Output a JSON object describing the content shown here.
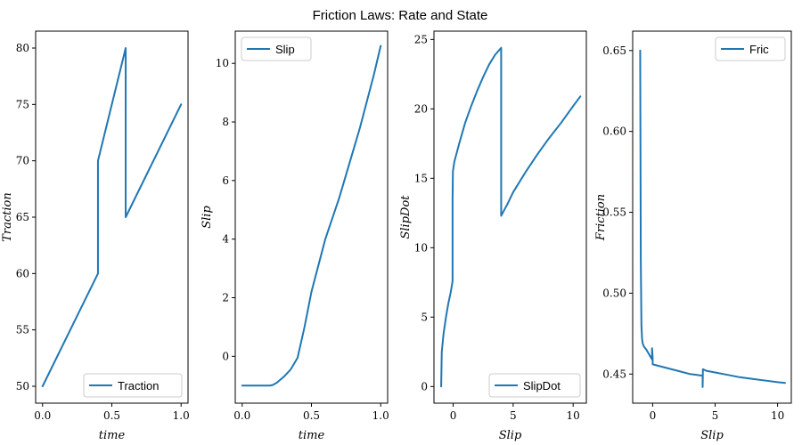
{
  "title": "Friction Laws: Rate and State",
  "colors": {
    "line": "#1f77b4",
    "axis": "#000000",
    "legend_border": "#cccccc"
  },
  "chart_data": [
    {
      "type": "line",
      "xlabel": "time",
      "ylabel": "Traction",
      "xlim": [
        -0.05,
        1.05
      ],
      "ylim": [
        48.5,
        81.5
      ],
      "xticks": [
        0.0,
        0.5,
        1.0
      ],
      "xtick_labels": [
        "0.0",
        "0.5",
        "1.0"
      ],
      "yticks": [
        50,
        55,
        60,
        65,
        70,
        75,
        80
      ],
      "ytick_labels": [
        "50",
        "55",
        "60",
        "65",
        "70",
        "75",
        "80"
      ],
      "legend": "lower right",
      "series": [
        {
          "name": "Traction",
          "x": [
            0.0,
            0.4,
            0.4,
            0.6,
            0.6,
            1.0
          ],
          "y": [
            50,
            60,
            70,
            80,
            65,
            75
          ]
        }
      ]
    },
    {
      "type": "line",
      "xlabel": "time",
      "ylabel": "Slip",
      "xlim": [
        -0.05,
        1.05
      ],
      "ylim": [
        -1.6,
        11.1
      ],
      "xticks": [
        0.0,
        0.5,
        1.0
      ],
      "xtick_labels": [
        "0.0",
        "0.5",
        "1.0"
      ],
      "yticks": [
        0,
        2,
        4,
        6,
        8,
        10
      ],
      "ytick_labels": [
        "0",
        "2",
        "4",
        "6",
        "8",
        "10"
      ],
      "legend": "upper left",
      "series": [
        {
          "name": "Slip",
          "x": [
            0.0,
            0.2,
            0.22,
            0.25,
            0.3,
            0.35,
            0.4,
            0.45,
            0.5,
            0.55,
            0.6,
            0.65,
            0.7,
            0.75,
            0.8,
            0.85,
            0.9,
            0.95,
            1.0
          ],
          "y": [
            -1.0,
            -1.0,
            -0.98,
            -0.9,
            -0.7,
            -0.45,
            -0.05,
            1.0,
            2.2,
            3.1,
            4.0,
            4.7,
            5.4,
            6.2,
            7.0,
            7.8,
            8.7,
            9.6,
            10.6
          ]
        }
      ]
    },
    {
      "type": "line",
      "xlabel": "Slip",
      "ylabel": "SlipDot",
      "xlim": [
        -1.6,
        11.1
      ],
      "ylim": [
        -1.2,
        25.6
      ],
      "xticks": [
        0,
        5,
        10
      ],
      "xtick_labels": [
        "0",
        "5",
        "10"
      ],
      "yticks": [
        0,
        5,
        10,
        15,
        20,
        25
      ],
      "ytick_labels": [
        "0",
        "5",
        "10",
        "15",
        "20",
        "25"
      ],
      "legend": "lower right",
      "series": [
        {
          "name": "SlipDot",
          "x": [
            -1.0,
            -0.95,
            -0.8,
            -0.6,
            -0.4,
            -0.2,
            -0.05,
            -0.05,
            -0.02,
            0.1,
            0.5,
            1.0,
            1.5,
            2.0,
            2.5,
            3.0,
            3.5,
            4.0,
            4.0,
            4.5,
            5.0,
            6.0,
            7.0,
            8.0,
            9.0,
            10.0,
            10.6
          ],
          "y": [
            0.0,
            2.5,
            3.8,
            5.0,
            6.0,
            6.8,
            7.6,
            13.5,
            15.5,
            16.2,
            17.5,
            19.0,
            20.2,
            21.3,
            22.3,
            23.2,
            23.9,
            24.4,
            12.3,
            13.1,
            14.0,
            15.4,
            16.7,
            17.9,
            19.0,
            20.2,
            20.9
          ]
        }
      ]
    },
    {
      "type": "line",
      "xlabel": "Slip",
      "ylabel": "Friction",
      "xlim": [
        -1.6,
        11.1
      ],
      "ylim": [
        0.432,
        0.662
      ],
      "xticks": [
        0,
        5,
        10
      ],
      "xtick_labels": [
        "0",
        "5",
        "10"
      ],
      "yticks": [
        0.45,
        0.5,
        0.55,
        0.6,
        0.65
      ],
      "ytick_labels": [
        "0.45",
        "0.50",
        "0.55",
        "0.60",
        "0.65"
      ],
      "legend": "upper right",
      "series": [
        {
          "name": "Fric",
          "x": [
            -1.0,
            -0.98,
            -0.95,
            -0.9,
            -0.85,
            -0.8,
            -0.7,
            -0.5,
            -0.2,
            -0.05,
            -0.05,
            0.0,
            0.0,
            1.0,
            2.0,
            3.0,
            4.0,
            4.0,
            4.02,
            4.02,
            4.3,
            5.0,
            6.0,
            7.0,
            8.0,
            9.0,
            10.0,
            10.6
          ],
          "y": [
            0.65,
            0.6,
            0.52,
            0.48,
            0.472,
            0.469,
            0.467,
            0.465,
            0.461,
            0.459,
            0.466,
            0.46,
            0.456,
            0.454,
            0.452,
            0.45,
            0.449,
            0.442,
            0.452,
            0.453,
            0.452,
            0.451,
            0.4495,
            0.448,
            0.447,
            0.446,
            0.445,
            0.4445
          ]
        }
      ]
    }
  ]
}
